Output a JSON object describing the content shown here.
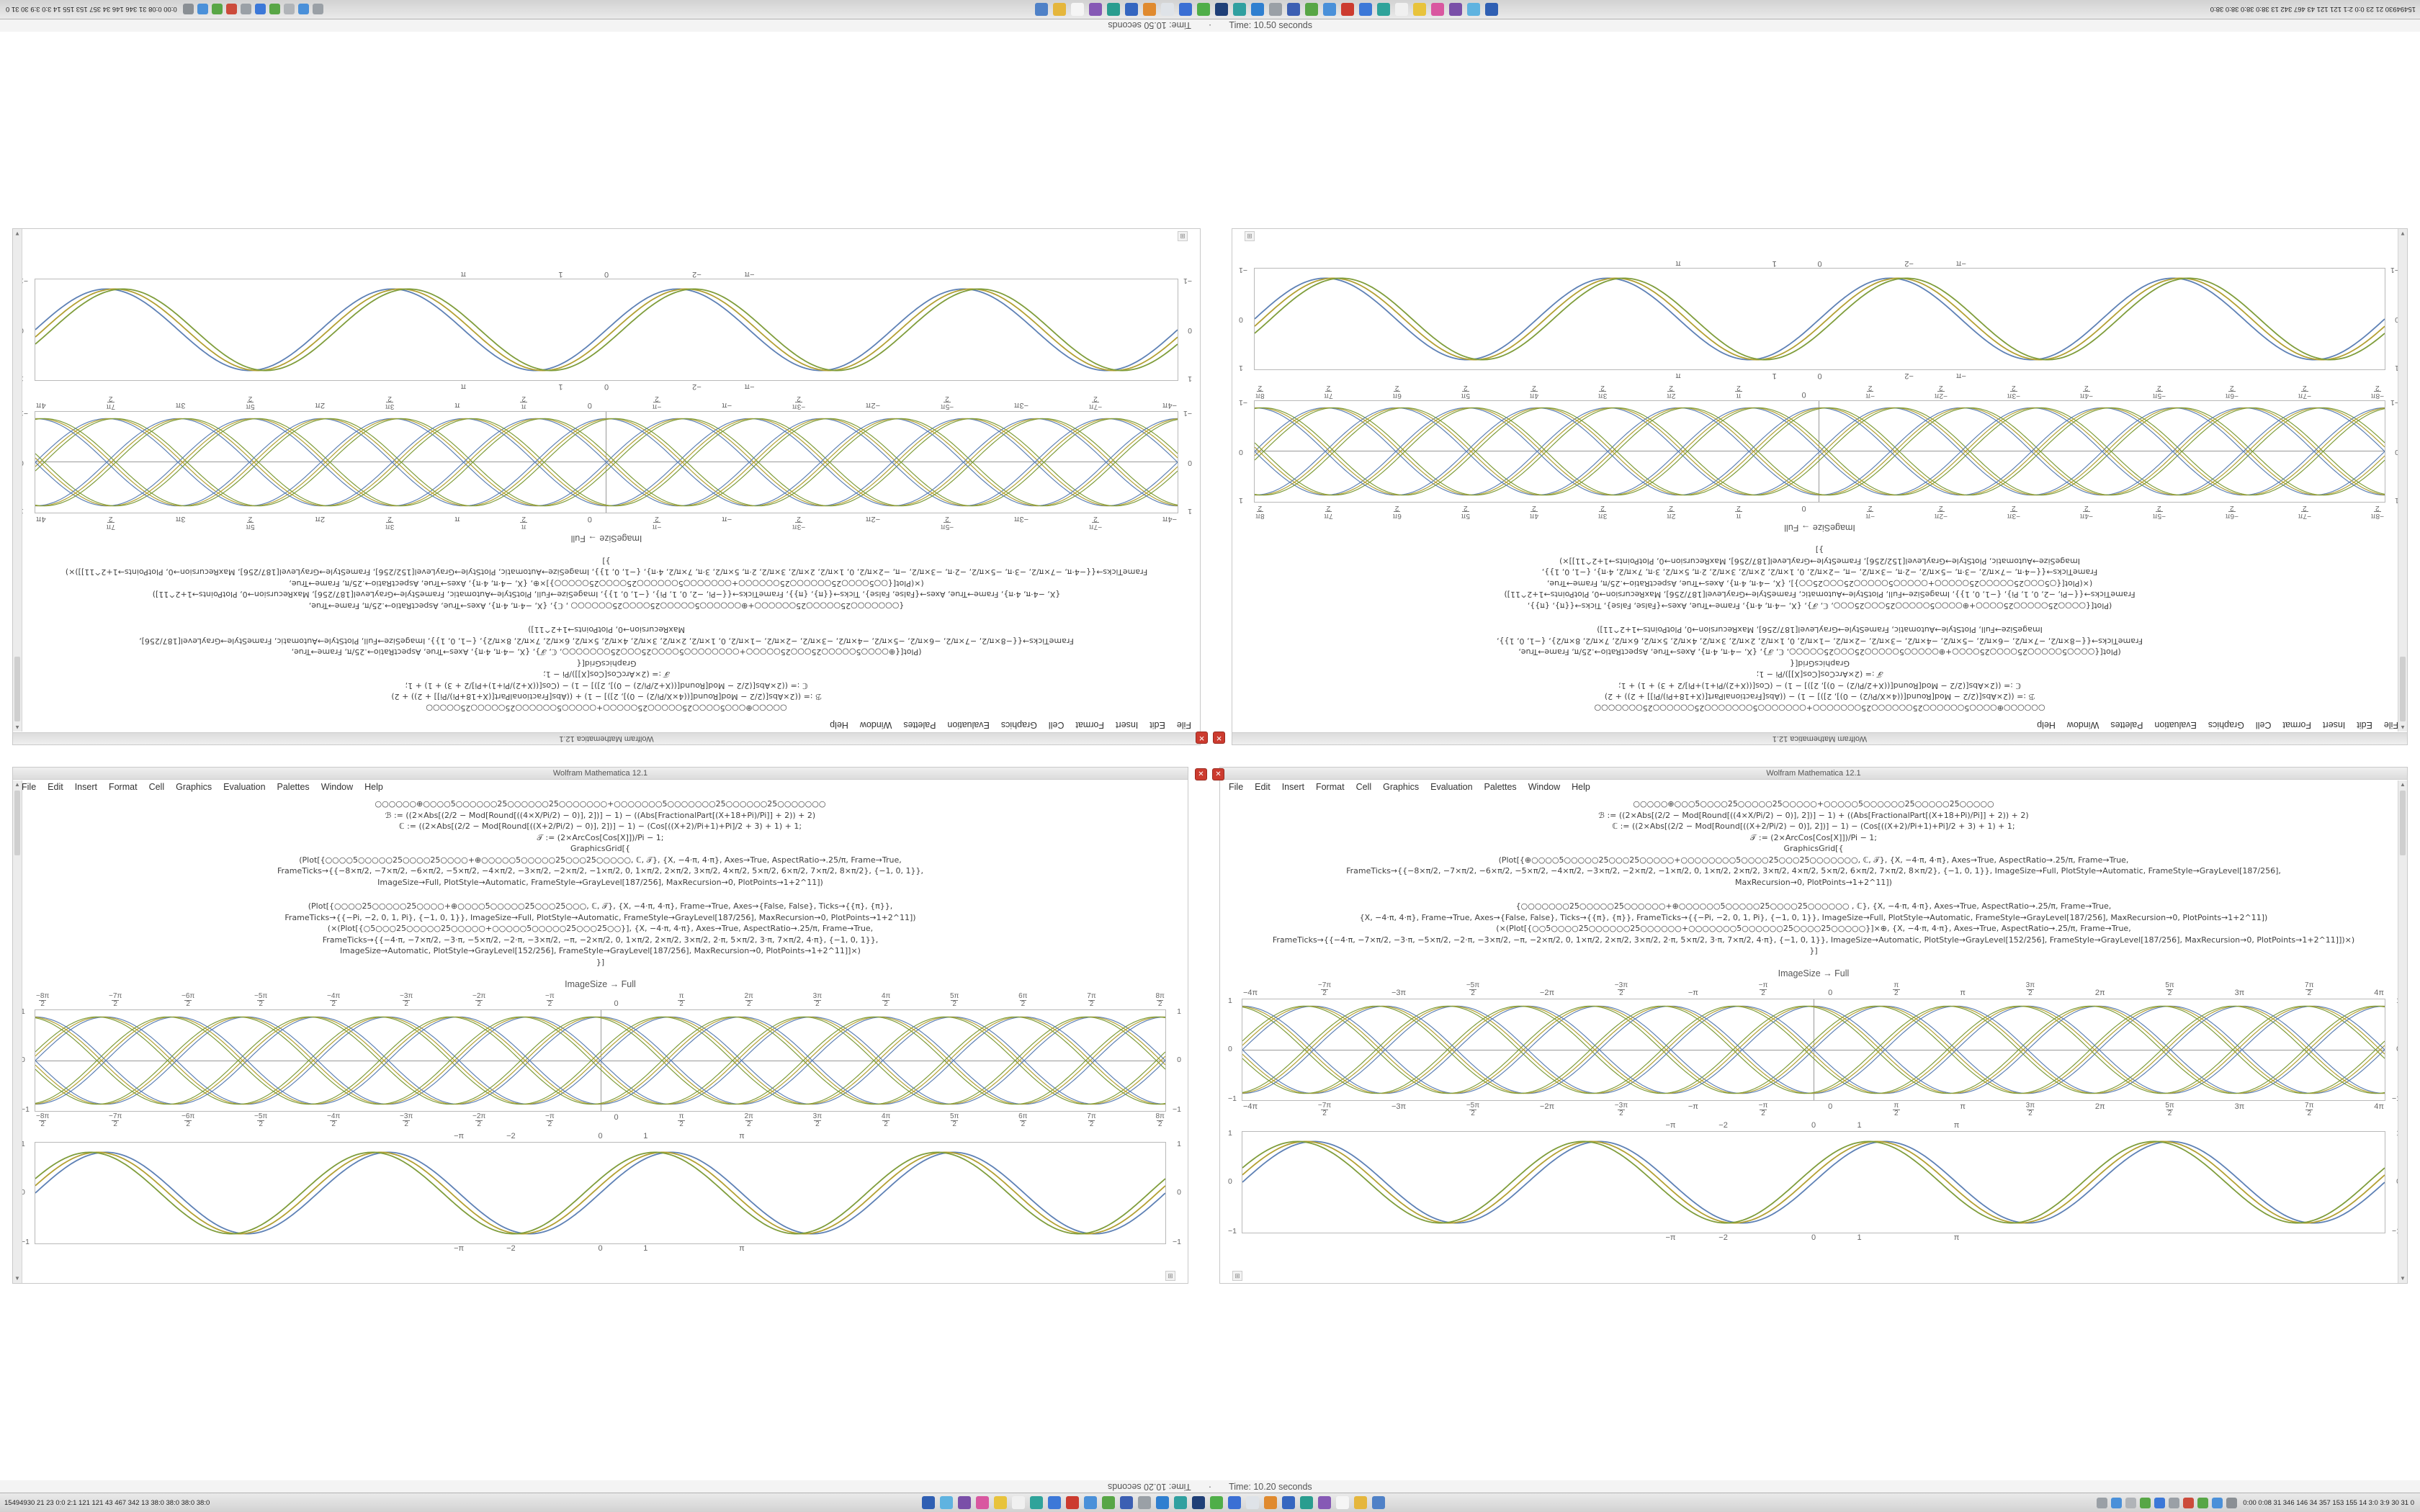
{
  "ui": {
    "close_glyph": "✕",
    "grip_glyph": "⊞",
    "scroll_up": "▲",
    "scroll_down": "▼",
    "separator": "·"
  },
  "halves": [
    {
      "status": "Time: 10.50 seconds"
    },
    {
      "status": "Time: 10.20 seconds"
    }
  ],
  "menu": {
    "items": [
      "File",
      "Edit",
      "Insert",
      "Format",
      "Cell",
      "Graphics",
      "Evaluation",
      "Palettes",
      "Window",
      "Help"
    ]
  },
  "taskbar": {
    "left_text": "15494930 21 23 0:0 2:1 121 121 43 467 342 13 38:0 38:0 38:0 38:0",
    "tray_text": "0:00 0:08 31 346 146 34 357 153 155 14 3:0 3:9 30 31 0",
    "main_icons": [
      "#2f5fb3",
      "#5fb3e0",
      "#7a4fa8",
      "#d957a0",
      "#e8c33c",
      "#f0f0f0",
      "#2fa39a",
      "#3c78d8",
      "#cc3b2f",
      "#4a90d9",
      "#58a646",
      "#3c5fb3",
      "#9aa0a6",
      "#2f7fd0",
      "#30a0a0",
      "#1f3f77",
      "#4fae49",
      "#3b6fd4",
      "#dfe3e8",
      "#e08a2e",
      "#3566c0",
      "#2a9d8f",
      "#8659b5",
      "#f5f5f5",
      "#e5b63c",
      "#4f81c7"
    ],
    "tray_icons": [
      "#9aa0a6",
      "#4a90d9",
      "#b0b4b8",
      "#58a646",
      "#3c78d8",
      "#9aa0a6",
      "#cc4b3b",
      "#58a646",
      "#4a90d9",
      "#8a8f94"
    ]
  },
  "windows": [
    {
      "title": "Wolfram Mathematica 12.1",
      "caption": "ImageSize → Full",
      "cells": [
        {
          "lines": [
            "○○○○○○⊕○○○○5○○○○○○25○○○○○○25○○○○○○○+○○○○○○○5○○○○○○○25○○○○○○25○○○○○○○",
            "ℬ := ((2×Abs[(2/2 − Mod[Round[((4×X/Pi/2) − 0)], 2])] − 1) − ((Abs[FractionalPart[(X+18+Pi)/Pi]] + 2)) + 2)",
            "ℂ := ((2×Abs[(2/2 − Mod[Round[((X+2/Pi/2) − 0)], 2])] − 1) − (Cos[((X+2)/Pi+1)+Pi]/2 + 3) + 1) + 1;",
            "𝒯 := (2×ArcCos[Cos[X]])/Pi − 1;",
            "GraphicsGrid[{",
            "(Plot[{○○○○5○○○○○25○○○○25○○○○+⊕○○○○○5○○○○○25○○○25○○○○○, ℂ, 𝒯}, {X, −4·π, 4·π}, Axes→True, AspectRatio→.25/π, Frame→True,",
            "FrameTicks→{{−8×π/2, −7×π/2, −6×π/2, −5×π/2, −4×π/2, −3×π/2, −2×π/2, −1×π/2, 0, 1×π/2, 2×π/2, 3×π/2, 4×π/2, 5×π/2, 6×π/2, 7×π/2, 8×π/2}, {−1, 0, 1}},",
            "ImageSize→Full, PlotStyle→Automatic, FrameStyle→GrayLevel[187/256], MaxRecursion→0, PlotPoints→1+2^11])"
          ]
        },
        {
          "lines": [
            "(Plot[{○○○○25○○○○○25○○○○+⊕○○○○5○○○○○25○○○25○○○, ℂ, 𝒯}, {X, −4·π, 4·π}, Frame→True, Axes→{False, False}, Ticks→{{π}, {π}},",
            "FrameTicks→{{−Pi, −2, 0, 1, Pi}, {−1, 0, 1}}, ImageSize→Full, PlotStyle→Automatic, FrameStyle→GrayLevel[187/256], MaxRecursion→0, PlotPoints→1+2^11])",
            "(×(Plot[{○5○○○25○○○○○25○○○○○+○○○○○5○○○○○25○○○25○○}], {X, −4·π, 4·π}, Axes→True, AspectRatio→.25/π, Frame→True,",
            "FrameTicks→{{−4·π, −7×π/2, −3·π, −5×π/2, −2·π, −3×π/2, −π, −2×π/2, 0, 1×π/2, 2×π/2, 3×π/2, 2·π, 5×π/2, 3·π, 7×π/2, 4·π}, {−1, 0, 1}},",
            "ImageSize→Automatic, PlotStyle→GrayLevel[152/256], FrameStyle→GrayLevel[187/256], MaxRecursion→0, PlotPoints→1+2^11]]×)",
            "}]"
          ]
        }
      ],
      "charts": {
        "braid": {
          "type": "line",
          "x_range": [
            -12.566,
            12.566
          ],
          "functions": [
            "sin",
            "-sin",
            "cos",
            "-cos"
          ],
          "phases": [
            0,
            0.1,
            0.2
          ],
          "colors": [
            "#5e81b5",
            "#b3a033",
            "#7f9d3b"
          ],
          "amplitude": 0.97,
          "ylim": 1.12,
          "stroke": 1.2,
          "axes": true,
          "x_ticks": [
            {
              "n": "−8π",
              "d": "2"
            },
            {
              "n": "−7π",
              "d": "2"
            },
            {
              "n": "−6π",
              "d": "2"
            },
            {
              "n": "−5π",
              "d": "2"
            },
            {
              "n": "−4π",
              "d": "2"
            },
            {
              "n": "−3π",
              "d": "2"
            },
            {
              "n": "−2π",
              "d": "2"
            },
            {
              "n": "−π",
              "d": "2"
            },
            "0",
            {
              "n": "π",
              "d": "2"
            },
            {
              "n": "2π",
              "d": "2"
            },
            {
              "n": "3π",
              "d": "2"
            },
            {
              "n": "4π",
              "d": "2"
            },
            {
              "n": "5π",
              "d": "2"
            },
            {
              "n": "6π",
              "d": "2"
            },
            {
              "n": "7π",
              "d": "2"
            },
            {
              "n": "8π",
              "d": "2"
            }
          ],
          "y_ticks": [
            "1",
            "0",
            "−1"
          ]
        },
        "simple": {
          "type": "line",
          "x_range": [
            -12.566,
            12.566
          ],
          "functions": [
            "sin"
          ],
          "phases": [
            0,
            0.18,
            0.36
          ],
          "colors": [
            "#5e81b5",
            "#b3a033",
            "#7f9d3b"
          ],
          "amplitude": 0.93,
          "ylim": 1.15,
          "stroke": 1.8,
          "axes": false,
          "x_ticks_pos": [
            {
              "label": "−π",
              "pct": 37.5
            },
            {
              "label": "−2",
              "pct": 42.1
            },
            {
              "label": "0",
              "pct": 50
            },
            {
              "label": "1",
              "pct": 54
            },
            {
              "label": "π",
              "pct": 62.5
            }
          ],
          "y_ticks": [
            "1",
            "0",
            "−1"
          ]
        }
      }
    },
    {
      "title": "Wolfram Mathematica 12.1",
      "caption": "ImageSize → Full",
      "cells": [
        {
          "lines": [
            "○○○○○⊕○○○5○○○○25○○○○○25○○○○○+○○○○○5○○○○○○25○○○○○25○○○○○",
            "ℬ := ((2×Abs[(2/2 − Mod[Round[((4×X/Pi/2) − 0)], 2])] − 1) + ((Abs[FractionalPart[(X+18+Pi)/Pi]] + 2)) + 2)",
            "ℂ := ((2×Abs[(2/2 − Mod[Round[((X+2/Pi/2) − 0)], 2])] − 1) − (Cos[((X+2)/Pi+1)+Pi]/2 + 3) + 1) + 1;",
            "𝒯 := (2×ArcCos[Cos[X]])/Pi − 1;",
            "GraphicsGrid[{",
            "(Plot[{⊕○○○○5○○○○○25○○○25○○○○○+○○○○○○○○5○○○○25○○○25○○○○○○○, ℂ, 𝒯}, {X, −4·π, 4·π}, Axes→True, AspectRatio→.25/π, Frame→True,",
            "FrameTicks→{{−8×π/2, −7×π/2, −6×π/2, −5×π/2, −4×π/2, −3×π/2, −2×π/2, −1×π/2, 0, 1×π/2, 2×π/2, 3×π/2, 4×π/2, 5×π/2, 6×π/2, 7×π/2, 8×π/2}, {−1, 0, 1}}, ImageSize→Full, PlotStyle→Automatic, FrameStyle→GrayLevel[187/256],",
            "MaxRecursion→0, PlotPoints→1+2^11])"
          ]
        },
        {
          "lines": [
            "{○○○○○○○25○○○○○25○○○○○○+⊕○○○○○○5○○○○○25○○○○25○○○○○○ , ℂ}, {X, −4·π, 4·π}, Axes→True, AspectRatio→.25/π, Frame→True,",
            "{X, −4·π, 4·π}, Frame→True, Axes→{False, False}, Ticks→{{π}, {π}}, FrameTicks→{{−Pi, −2, 0, 1, Pi}, {−1, 0, 1}}, ImageSize→Full, PlotStyle→Automatic, FrameStyle→GrayLevel[187/256], MaxRecursion→0, PlotPoints→1+2^11])",
            "(×(Plot[{○○5○○○○25○○○○○○25○○○○○○+○○○○○○○5○○○○○○25○○○○25○○○○○}]×⊕, {X, −4·π, 4·π}, Axes→True, AspectRatio→.25/π, Frame→True,",
            "FrameTicks→{{−4·π, −7×π/2, −3·π, −5×π/2, −2·π, −3×π/2, −π, −2×π/2, 0, 1×π/2, 2×π/2, 3×π/2, 2·π, 5×π/2, 3·π, 7×π/2, 4·π}, {−1, 0, 1}}, ImageSize→Automatic, PlotStyle→GrayLevel[152/256], FrameStyle→GrayLevel[187/256], MaxRecursion→0, PlotPoints→1+2^11]])×)",
            "}]"
          ]
        }
      ],
      "charts": {
        "braid": {
          "type": "line",
          "x_range": [
            -12.566,
            12.566
          ],
          "functions": [
            "sin",
            "-sin",
            "cos",
            "-cos"
          ],
          "phases": [
            0,
            0.1,
            0.2
          ],
          "colors": [
            "#5e81b5",
            "#b3a033",
            "#7f9d3b"
          ],
          "amplitude": 0.97,
          "ylim": 1.12,
          "stroke": 1.2,
          "axes": true,
          "x_ticks": [
            "−4π",
            {
              "n": "−7π",
              "d": "2"
            },
            "−3π",
            {
              "n": "−5π",
              "d": "2"
            },
            "−2π",
            {
              "n": "−3π",
              "d": "2"
            },
            "−π",
            {
              "n": "−π",
              "d": "2"
            },
            "0",
            {
              "n": "π",
              "d": "2"
            },
            "π",
            {
              "n": "3π",
              "d": "2"
            },
            "2π",
            {
              "n": "5π",
              "d": "2"
            },
            "3π",
            {
              "n": "7π",
              "d": "2"
            },
            "4π"
          ],
          "y_ticks": [
            "1",
            "0",
            "−1"
          ]
        },
        "simple": {
          "type": "line",
          "x_range": [
            -12.566,
            12.566
          ],
          "functions": [
            "sin"
          ],
          "phases": [
            0,
            0.18,
            0.36
          ],
          "colors": [
            "#5e81b5",
            "#b3a033",
            "#7f9d3b"
          ],
          "amplitude": 0.93,
          "ylim": 1.15,
          "stroke": 1.8,
          "axes": false,
          "x_ticks_pos": [
            {
              "label": "−π",
              "pct": 37.5
            },
            {
              "label": "−2",
              "pct": 42.1
            },
            {
              "label": "0",
              "pct": 50
            },
            {
              "label": "1",
              "pct": 54
            },
            {
              "label": "π",
              "pct": 62.5
            }
          ],
          "y_ticks": [
            "1",
            "0",
            "−1"
          ]
        }
      }
    }
  ]
}
